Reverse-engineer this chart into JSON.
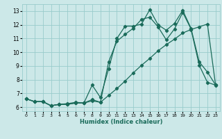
{
  "xlabel": "Humidex (Indice chaleur)",
  "ylabel": "",
  "bg_color": "#cce8e8",
  "grid_color": "#99cccc",
  "line_color": "#1a6b5a",
  "marker": "D",
  "markersize": 2.2,
  "linewidth": 0.9,
  "xlim": [
    -0.5,
    23.5
  ],
  "ylim": [
    5.7,
    13.5
  ],
  "xticks": [
    0,
    1,
    2,
    3,
    4,
    5,
    6,
    7,
    8,
    9,
    10,
    11,
    12,
    13,
    14,
    15,
    16,
    17,
    18,
    19,
    20,
    21,
    22,
    23
  ],
  "yticks": [
    6,
    7,
    8,
    9,
    10,
    11,
    12,
    13
  ],
  "series1_x": [
    0,
    1,
    2,
    3,
    4,
    5,
    6,
    7,
    8,
    9,
    10,
    11,
    12,
    13,
    14,
    15,
    16,
    17,
    18,
    19,
    20,
    21,
    22,
    23
  ],
  "series1_y": [
    6.6,
    6.4,
    6.4,
    6.1,
    6.2,
    6.2,
    6.3,
    6.3,
    7.6,
    6.7,
    8.8,
    11.0,
    11.9,
    11.9,
    12.05,
    13.1,
    12.0,
    11.6,
    12.1,
    13.05,
    11.75,
    9.3,
    8.55,
    7.6
  ],
  "series2_x": [
    0,
    1,
    2,
    3,
    4,
    5,
    6,
    7,
    8,
    9,
    10,
    11,
    12,
    13,
    14,
    15,
    16,
    17,
    18,
    19,
    20,
    21,
    22,
    23
  ],
  "series2_y": [
    6.6,
    6.4,
    6.4,
    6.1,
    6.2,
    6.2,
    6.3,
    6.3,
    6.55,
    6.35,
    9.3,
    10.8,
    11.3,
    11.75,
    12.4,
    12.55,
    11.85,
    10.9,
    11.7,
    12.9,
    11.7,
    9.05,
    7.8,
    7.6
  ],
  "series3_x": [
    0,
    1,
    2,
    3,
    4,
    5,
    6,
    7,
    8,
    9,
    10,
    11,
    12,
    13,
    14,
    15,
    16,
    17,
    18,
    19,
    20,
    21,
    22,
    23
  ],
  "series3_y": [
    6.6,
    6.4,
    6.4,
    6.1,
    6.2,
    6.25,
    6.35,
    6.3,
    6.45,
    6.35,
    6.85,
    7.35,
    7.9,
    8.5,
    9.05,
    9.55,
    10.1,
    10.55,
    10.95,
    11.4,
    11.65,
    11.85,
    12.05,
    7.55
  ]
}
